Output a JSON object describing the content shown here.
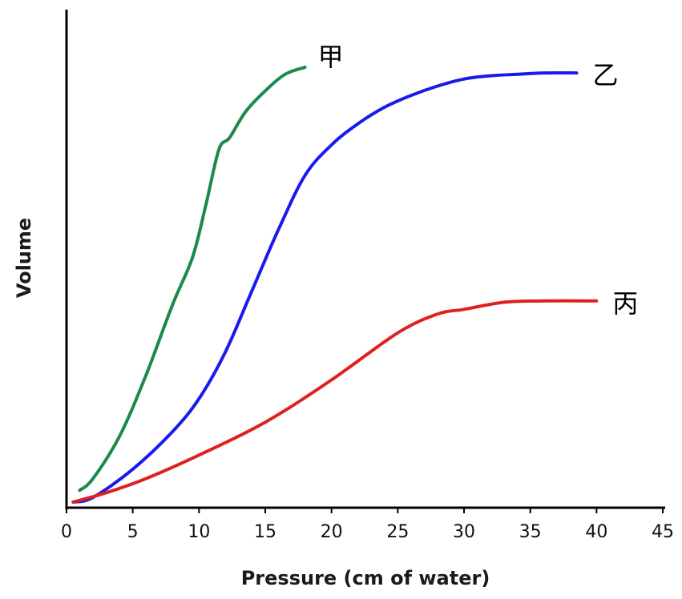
{
  "chart_data": {
    "type": "line",
    "xlabel": "Pressure (cm of water)",
    "ylabel": "Volume",
    "xlim": [
      0,
      45
    ],
    "ylim": [
      0,
      100
    ],
    "x_ticks": [
      0,
      5,
      10,
      15,
      20,
      25,
      30,
      35,
      40,
      45
    ],
    "y_ticks_shown": false,
    "grid": false,
    "legend": "none",
    "series": [
      {
        "name": "甲",
        "color": "#1a8a4a",
        "x": [
          1,
          2,
          4,
          6,
          8,
          9.5,
          10.5,
          11.5,
          12.3,
          13.5,
          15,
          16.5,
          18
        ],
        "y": [
          2.5,
          5,
          14,
          27,
          42,
          52,
          63,
          75,
          77.5,
          83,
          87.5,
          91,
          92.5
        ]
      },
      {
        "name": "乙",
        "color": "#1a1aee",
        "x": [
          0.5,
          2,
          5,
          8,
          10,
          12,
          14,
          16,
          18,
          20,
          22,
          24,
          26,
          28,
          30,
          32,
          34,
          36,
          38.5
        ],
        "y": [
          0,
          1,
          7,
          15,
          22,
          32,
          45,
          58,
          69.5,
          76,
          80.5,
          84,
          86.5,
          88.5,
          90,
          90.7,
          91,
          91.3,
          91.3
        ]
      },
      {
        "name": "丙",
        "color": "#e02020",
        "x": [
          0.5,
          3,
          6,
          10,
          15,
          20,
          25,
          28,
          30,
          33,
          36,
          40
        ],
        "y": [
          0,
          2,
          5,
          10,
          17,
          26,
          36,
          40,
          41,
          42.5,
          42.8,
          42.8
        ]
      }
    ]
  }
}
